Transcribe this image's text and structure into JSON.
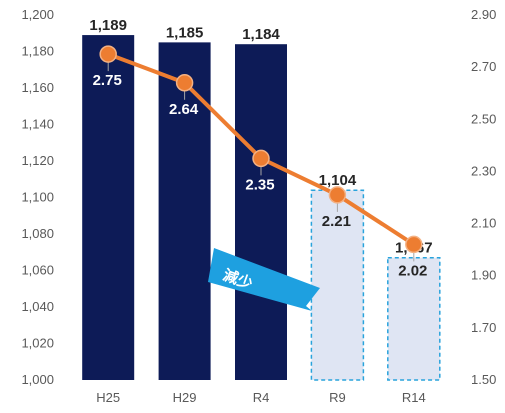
{
  "chart_data": {
    "type": "bar",
    "categories": [
      "H25",
      "H29",
      "R4",
      "R9",
      "R14"
    ],
    "series": [
      {
        "type": "bar",
        "axis": "left",
        "values": [
          1189,
          1185,
          1184,
          1104,
          1067
        ],
        "labels": [
          "1,189",
          "1,185",
          "1,184",
          "1,104",
          "1,067"
        ],
        "kind": [
          "actual",
          "actual",
          "actual",
          "projected",
          "projected"
        ]
      },
      {
        "type": "line",
        "axis": "right",
        "values": [
          2.75,
          2.64,
          2.35,
          2.21,
          2.02
        ],
        "labels": [
          "2.75",
          "2.64",
          "2.35",
          "2.21",
          "2.02"
        ]
      }
    ],
    "left_axis": {
      "ylim": [
        1000,
        1200
      ],
      "ticks": [
        "1,000",
        "1,020",
        "1,040",
        "1,060",
        "1,080",
        "1,100",
        "1,120",
        "1,140",
        "1,160",
        "1,180",
        "1,200"
      ]
    },
    "right_axis": {
      "ylim": [
        1.5,
        2.9
      ],
      "ticks": [
        "1.50",
        "1.70",
        "1.90",
        "2.10",
        "2.30",
        "2.50",
        "2.70",
        "2.90"
      ]
    },
    "annotation": "減少",
    "grid": false,
    "legend": "none"
  },
  "colors": {
    "bar_actual": "#0d1b57",
    "bar_projected_fill": "#dfe5f3",
    "bar_projected_border": "#29a3dc",
    "line": "#ed7d31",
    "marker": "#ed7d31",
    "annotation_arrow": "#1ea0e0",
    "axis_text": "#595959"
  }
}
